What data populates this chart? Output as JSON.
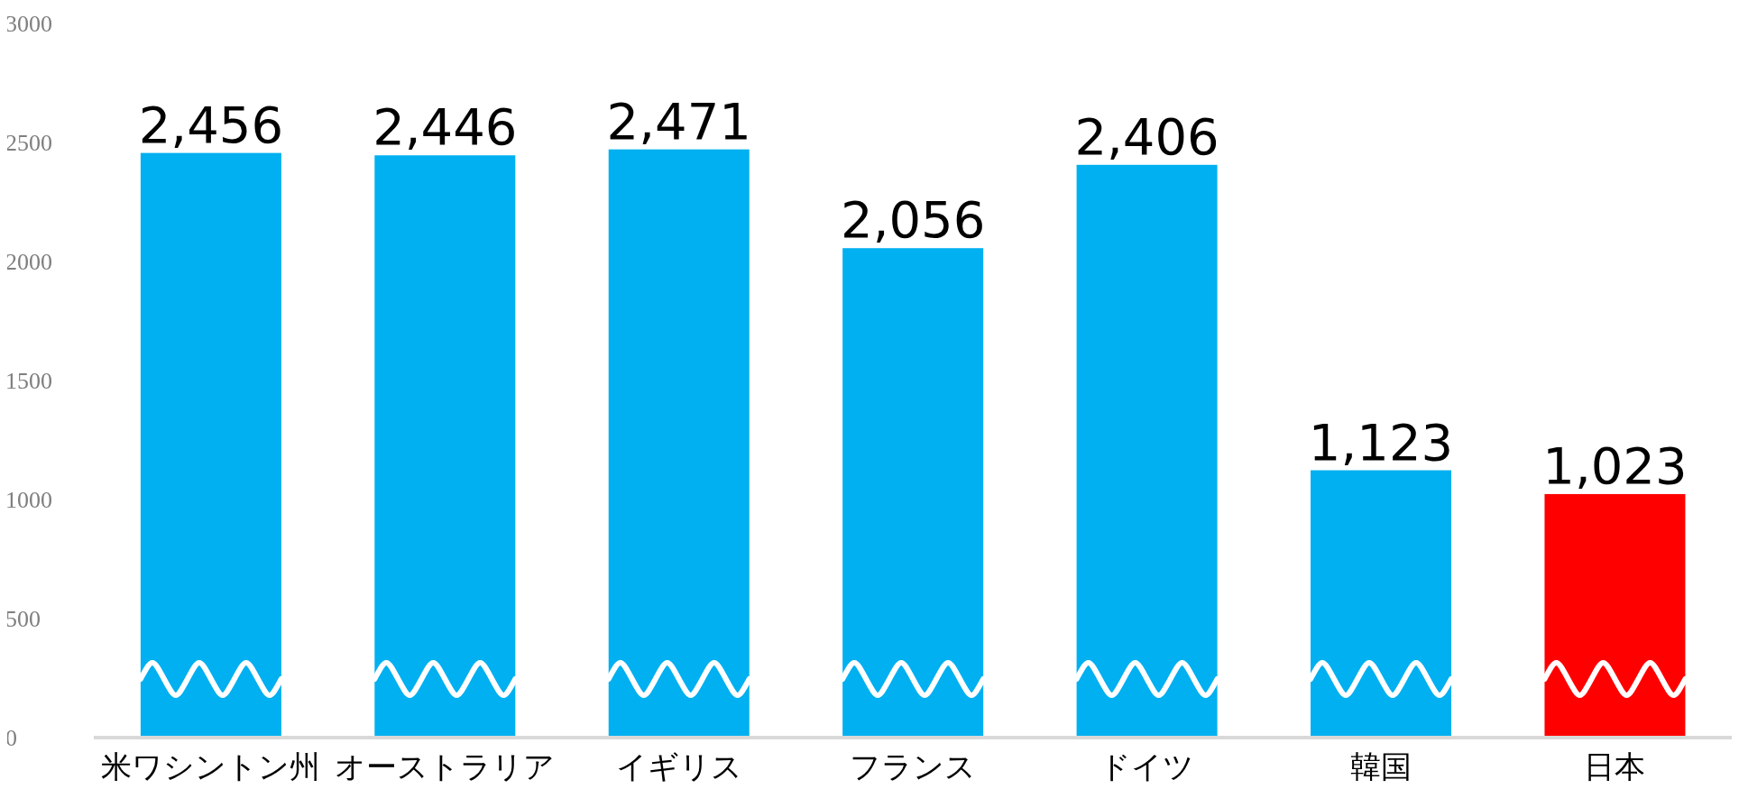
{
  "chart_data": {
    "type": "bar",
    "categories": [
      "米ワシントン州",
      "オーストラリア",
      "イギリス",
      "フランス",
      "ドイツ",
      "韓国",
      "日本"
    ],
    "values": [
      2456,
      2446,
      2471,
      2056,
      2406,
      1123,
      1023
    ],
    "colors": [
      "#00b0f0",
      "#00b0f0",
      "#00b0f0",
      "#00b0f0",
      "#00b0f0",
      "#00b0f0",
      "#ff0000"
    ],
    "value_labels": [
      "2,456",
      "2,446",
      "2,471",
      "2,056",
      "2,406",
      "1,123",
      "1,023"
    ],
    "ylim": [
      0,
      3000
    ],
    "yticks": [
      0,
      500,
      1000,
      1500,
      2000,
      2500,
      3000
    ],
    "grid": false
  }
}
